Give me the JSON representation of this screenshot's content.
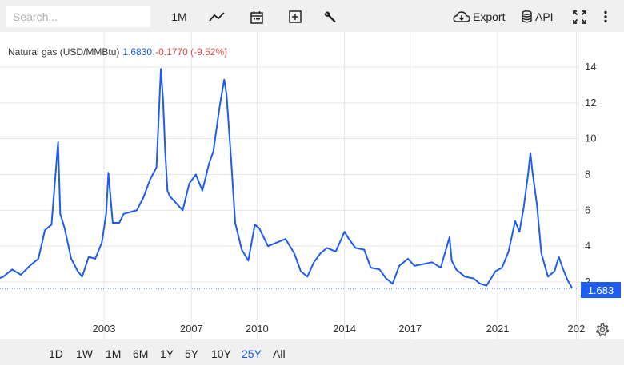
{
  "toolbar": {
    "search_placeholder": "Search...",
    "interval_label": "1M",
    "export_label": "Export",
    "api_label": "API"
  },
  "legend": {
    "name": "Natural gas (USD/MMBtu)",
    "value": "1.6830",
    "change": "-0.1770 (-9.52%)"
  },
  "price_tag": "1.683",
  "range_buttons": [
    "1D",
    "1W",
    "1M",
    "6M",
    "1Y",
    "5Y",
    "10Y",
    "25Y",
    "All"
  ],
  "active_range": "25Y",
  "colors": {
    "line": "#1e5cf0",
    "negative": "#e84a4a",
    "grid": "#e6e6e6"
  },
  "icons": [
    "line-chart-icon",
    "calendar-icon",
    "plus-box-icon",
    "wrench-icon",
    "cloud-download-icon",
    "database-icon",
    "fullscreen-icon",
    "more-vertical-icon",
    "gear-icon"
  ],
  "chart_data": {
    "type": "line",
    "title": "Natural gas (USD/MMBtu)",
    "xlabel": "",
    "ylabel": "",
    "x_ticks": [
      "2003",
      "2007",
      "2010",
      "2014",
      "2017",
      "2021",
      "202"
    ],
    "y_ticks": [
      "2",
      "4",
      "6",
      "8",
      "10",
      "12",
      "14"
    ],
    "ylim": [
      0,
      14
    ],
    "last_value": 1.683,
    "grid": true,
    "series": [
      {
        "name": "Natural gas (USD/MMBtu)",
        "x": [
          1998.0,
          1998.4,
          1998.8,
          1999.2,
          1999.6,
          2000.0,
          2000.3,
          2000.6,
          2000.9,
          2001.0,
          2001.2,
          2001.5,
          2001.8,
          2002.0,
          2002.3,
          2002.6,
          2002.9,
          2003.1,
          2003.2,
          2003.4,
          2003.7,
          2003.9,
          2004.2,
          2004.5,
          2004.8,
          2005.1,
          2005.4,
          2005.6,
          2005.7,
          2005.8,
          2005.9,
          2006.0,
          2006.3,
          2006.6,
          2006.9,
          2007.2,
          2007.5,
          2007.8,
          2008.0,
          2008.3,
          2008.5,
          2008.6,
          2008.8,
          2009.0,
          2009.3,
          2009.6,
          2009.9,
          2010.1,
          2010.5,
          2010.9,
          2011.3,
          2011.7,
          2012.0,
          2012.3,
          2012.6,
          2012.9,
          2013.2,
          2013.6,
          2014.0,
          2014.2,
          2014.5,
          2014.9,
          2015.2,
          2015.6,
          2015.9,
          2016.2,
          2016.5,
          2016.9,
          2017.2,
          2017.6,
          2018.0,
          2018.4,
          2018.8,
          2018.9,
          2019.1,
          2019.5,
          2019.9,
          2020.2,
          2020.5,
          2020.9,
          2021.2,
          2021.5,
          2021.8,
          2022.0,
          2022.2,
          2022.4,
          2022.5,
          2022.6,
          2022.8,
          2023.0,
          2023.3,
          2023.6,
          2023.8,
          2024.0,
          2024.2,
          2024.4
        ],
        "values": [
          2.1,
          2.3,
          2.7,
          2.4,
          2.9,
          3.3,
          4.9,
          5.2,
          9.8,
          5.8,
          5.0,
          3.3,
          2.6,
          2.3,
          3.4,
          3.3,
          4.2,
          5.8,
          8.1,
          5.3,
          5.3,
          5.8,
          5.9,
          6.0,
          6.7,
          7.7,
          8.4,
          13.9,
          12.2,
          9.3,
          7.1,
          6.8,
          6.4,
          6.0,
          7.5,
          8.0,
          7.1,
          8.6,
          9.3,
          11.9,
          13.3,
          12.5,
          9.1,
          5.3,
          3.8,
          3.2,
          5.2,
          5.0,
          4.0,
          4.2,
          4.4,
          3.6,
          2.6,
          2.3,
          3.1,
          3.6,
          3.9,
          3.7,
          4.8,
          4.4,
          3.9,
          3.8,
          2.8,
          2.7,
          2.2,
          1.9,
          2.9,
          3.3,
          2.9,
          3.0,
          3.1,
          2.8,
          4.5,
          3.2,
          2.7,
          2.3,
          2.2,
          1.9,
          1.8,
          2.6,
          2.8,
          3.7,
          5.4,
          4.8,
          6.2,
          8.1,
          9.2,
          8.1,
          6.3,
          3.6,
          2.3,
          2.6,
          3.4,
          2.7,
          2.1,
          1.683
        ]
      }
    ]
  }
}
